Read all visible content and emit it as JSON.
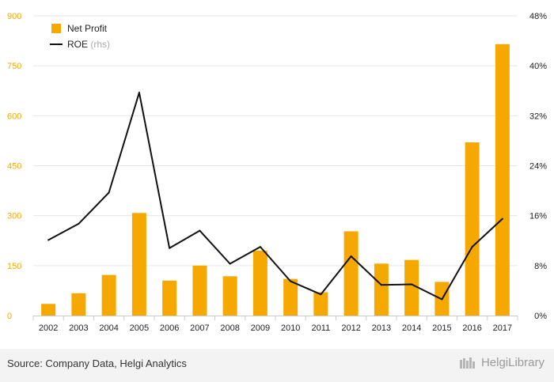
{
  "chart_data": {
    "type": "bar",
    "title": "",
    "xlabel": "",
    "ylabel": "",
    "categories": [
      "2002",
      "2003",
      "2004",
      "2005",
      "2006",
      "2007",
      "2008",
      "2009",
      "2010",
      "2011",
      "2012",
      "2013",
      "2014",
      "2015",
      "2016",
      "2017"
    ],
    "series": [
      {
        "name": "Net Profit",
        "type": "bar",
        "axis": "left",
        "color": "#f5a800",
        "values": [
          35,
          67,
          122,
          308,
          105,
          150,
          118,
          195,
          110,
          70,
          253,
          156,
          167,
          101,
          520,
          815
        ]
      },
      {
        "name": "ROE",
        "type": "line",
        "axis": "right",
        "color": "#111111",
        "values": [
          12.1,
          14.7,
          19.7,
          35.7,
          10.8,
          13.6,
          8.3,
          11.0,
          5.5,
          3.4,
          9.5,
          4.9,
          5.0,
          2.6,
          11.0,
          15.5
        ]
      }
    ],
    "y_left": {
      "ylim": [
        0,
        900
      ],
      "ticks": [
        "0",
        "150",
        "300",
        "450",
        "600",
        "750",
        "900"
      ],
      "color": "#f5a800"
    },
    "y_right": {
      "ylim": [
        0,
        48
      ],
      "ticks": [
        "0%",
        "8%",
        "16%",
        "24%",
        "32%",
        "40%",
        "48%"
      ]
    },
    "legend": {
      "position": "top-left",
      "items": [
        {
          "label": "Net Profit",
          "suffix": ""
        },
        {
          "label": "ROE",
          "suffix": "(rhs)"
        }
      ]
    },
    "grid": true
  },
  "footer": {
    "source": "Source: Company Data, Helgi Analytics",
    "brand": "HelgiLibrary"
  }
}
